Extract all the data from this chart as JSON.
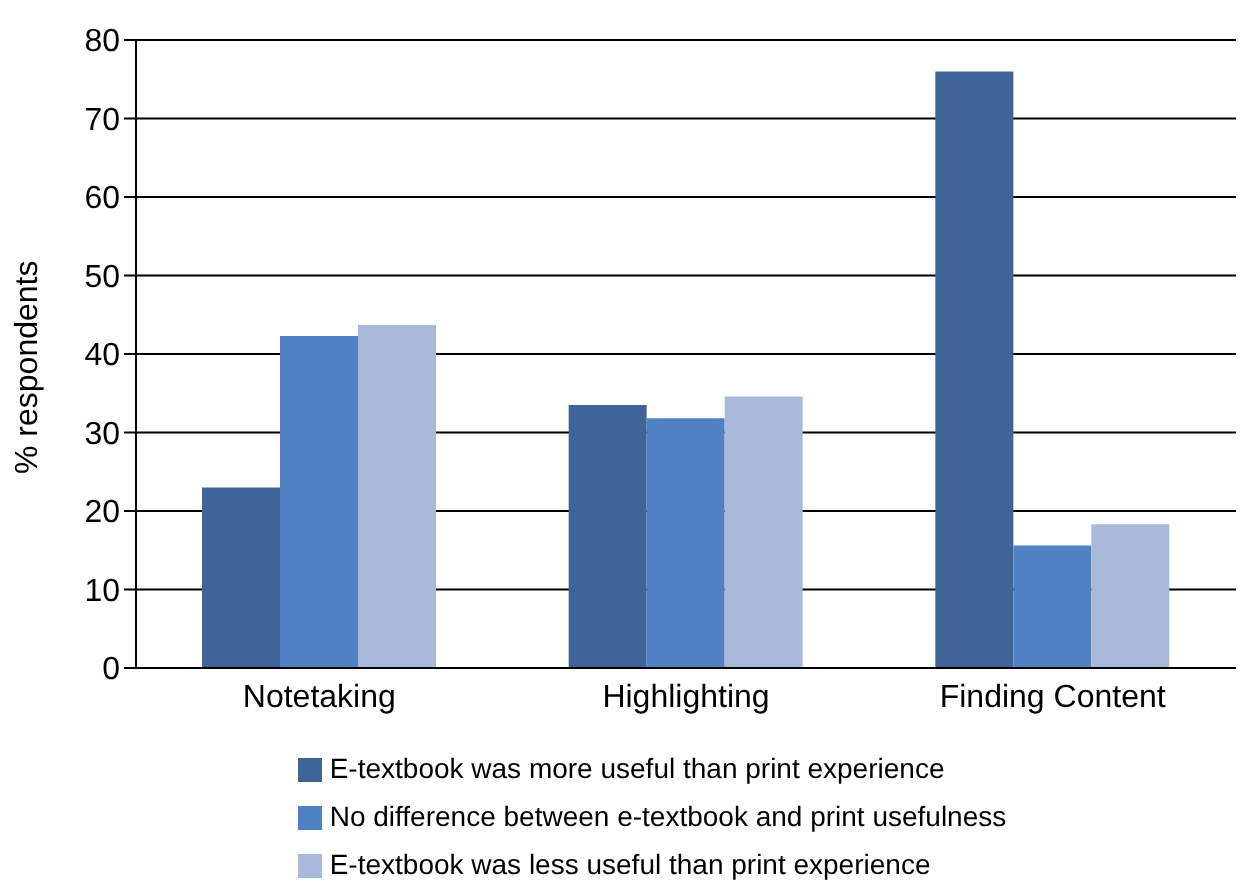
{
  "chart_data": {
    "type": "bar",
    "ylabel": "% respondents",
    "categories": [
      "Notetaking",
      "Highlighting",
      "Finding Content"
    ],
    "series": [
      {
        "name": "E-textbook was more useful than print experience",
        "color": "#3f6498",
        "values": [
          23,
          33.5,
          76
        ]
      },
      {
        "name": "No difference between e-textbook and print usefulness",
        "color": "#4f81c4",
        "values": [
          42.3,
          31.8,
          15.6
        ]
      },
      {
        "name": "E-textbook was less useful than print experience",
        "color": "#a8b9d9",
        "values": [
          43.7,
          34.6,
          18.3
        ]
      }
    ],
    "ylim": [
      0,
      80
    ],
    "yticks": [
      0,
      10,
      20,
      30,
      40,
      50,
      60,
      70,
      80
    ],
    "grid": "y",
    "legend": "bottom"
  }
}
